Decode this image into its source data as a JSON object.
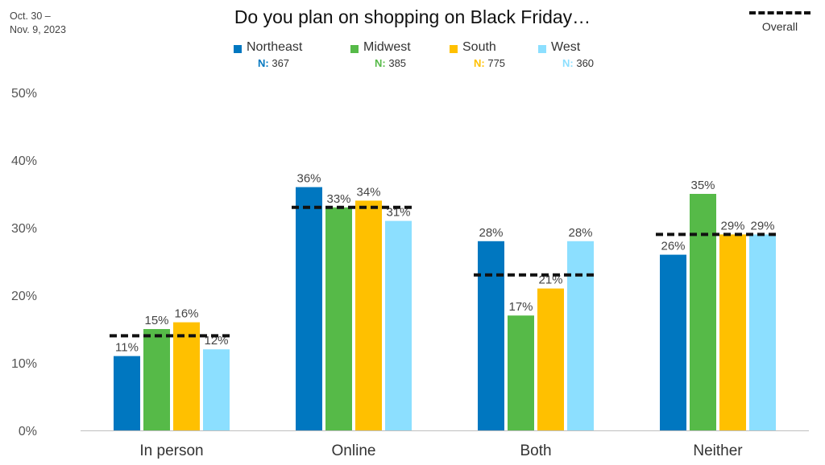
{
  "header": {
    "date_line1": "Oct. 30 –",
    "date_line2": "Nov. 9, 2023",
    "title": "Do you plan on shopping on Black Friday…"
  },
  "legend": [
    {
      "name": "Northeast",
      "n_label": "N:",
      "n_value": "367",
      "color": "#0077C0"
    },
    {
      "name": "Midwest",
      "n_label": "N:",
      "n_value": "385",
      "color": "#56BA48"
    },
    {
      "name": "South",
      "n_label": "N:",
      "n_value": "775",
      "color": "#FFC000"
    },
    {
      "name": "West",
      "n_label": "N:",
      "n_value": "360",
      "color": "#8CDFFF"
    }
  ],
  "overall_label": "Overall",
  "chart_data": {
    "type": "bar",
    "title": "Do you plan on shopping on Black Friday…",
    "categories": [
      "In person",
      "Online",
      "Both",
      "Neither"
    ],
    "series": [
      {
        "name": "Northeast",
        "color": "#0077C0",
        "values": [
          11,
          36,
          28,
          26
        ],
        "labels": [
          "11%",
          "36%",
          "28%",
          "26%"
        ]
      },
      {
        "name": "Midwest",
        "color": "#56BA48",
        "values": [
          15,
          33,
          17,
          35
        ],
        "labels": [
          "15%",
          "33%",
          "17%",
          "35%"
        ]
      },
      {
        "name": "South",
        "color": "#FFC000",
        "values": [
          16,
          34,
          21,
          29
        ],
        "labels": [
          "16%",
          "34%",
          "21%",
          "29%"
        ]
      },
      {
        "name": "West",
        "color": "#8CDFFF",
        "values": [
          12,
          31,
          28,
          29
        ],
        "labels": [
          "12%",
          "31%",
          "28%",
          "29%"
        ]
      }
    ],
    "overall": {
      "name": "Overall",
      "values": [
        14,
        33,
        23,
        29
      ]
    },
    "yticks": [
      "0%",
      "10%",
      "20%",
      "30%",
      "40%",
      "50%"
    ],
    "ylim": [
      0,
      50
    ],
    "grid": false,
    "legend_position": "top"
  }
}
